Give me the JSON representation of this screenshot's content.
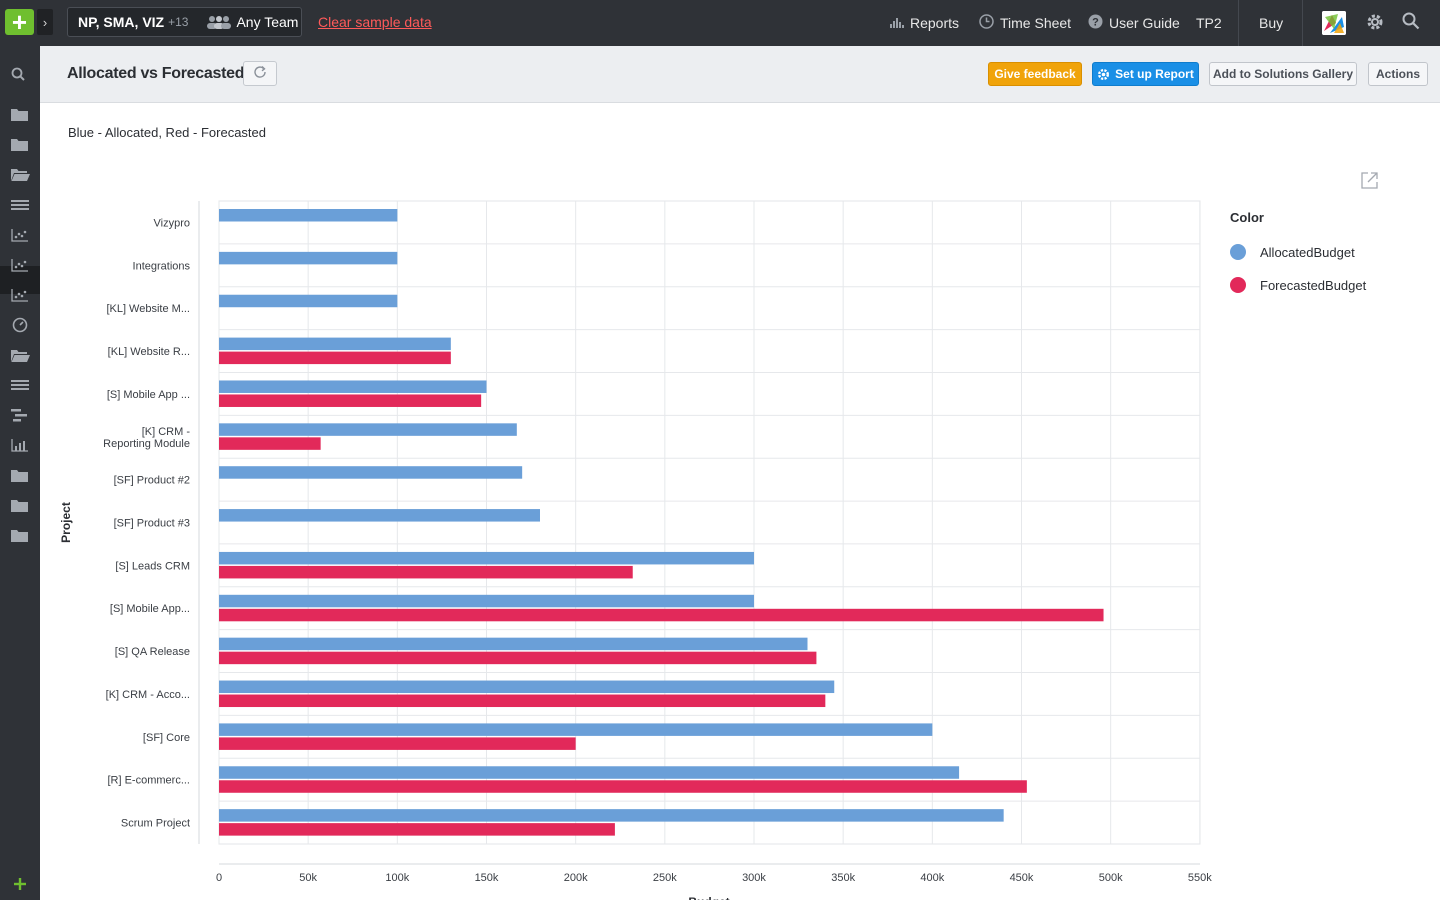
{
  "topbar": {
    "context_projects": "NP, SMA, VIZ",
    "context_count": "+13",
    "context_team": "Any Team",
    "clear_link": "Clear sample data",
    "nav": [
      {
        "label": "Reports",
        "icon": "bar-chart-icon"
      },
      {
        "label": "Time Sheet",
        "icon": "clock-icon"
      },
      {
        "label": "User Guide",
        "icon": "help-icon"
      },
      {
        "label": "TP2",
        "icon": ""
      },
      {
        "label": "Buy",
        "icon": ""
      }
    ]
  },
  "sidebar": {
    "icons": [
      "search-icon",
      "folder-icon",
      "folder-icon",
      "folder-open-icon",
      "list-icon",
      "scatter-chart-icon",
      "scatter-chart-icon",
      "scatter-chart-icon",
      "gauge-icon",
      "folder-open-icon",
      "list-icon",
      "gantt-icon",
      "bar-chart-icon",
      "folder-icon",
      "folder-icon",
      "folder-icon",
      "add-icon"
    ]
  },
  "header": {
    "title": "Allocated vs Forecasted",
    "feedback_label": "Give feedback",
    "setup_label": "Set up Report",
    "gallery_label": "Add to Solutions Gallery",
    "actions_label": "Actions"
  },
  "report": {
    "description": "Blue - Allocated, Red - Forecasted"
  },
  "colors": {
    "allocated": "#6a9fd8",
    "forecasted": "#e2295a",
    "accent_green": "#6fbf2f",
    "accent_blue": "#1a8fe6",
    "accent_orange": "#f0a30a"
  },
  "chart_data": {
    "type": "bar",
    "orientation": "horizontal",
    "ylabel": "Project",
    "xlabel": "Budget",
    "xlim": [
      0,
      550000
    ],
    "x_ticks": [
      "0",
      "50k",
      "100k",
      "150k",
      "200k",
      "250k",
      "300k",
      "350k",
      "400k",
      "450k",
      "500k",
      "550k"
    ],
    "grid": true,
    "legend_title": "Color",
    "legend_position": "right",
    "categories": [
      [
        "Vizypro"
      ],
      [
        "Integrations"
      ],
      [
        "[KL] Website M..."
      ],
      [
        "[KL] Website R..."
      ],
      [
        "[S] Mobile App ..."
      ],
      [
        "[K] CRM -",
        "Reporting Module"
      ],
      [
        "[SF] Product #2"
      ],
      [
        "[SF] Product #3"
      ],
      [
        "[S] Leads CRM"
      ],
      [
        "[S] Mobile App..."
      ],
      [
        "[S] QA Release"
      ],
      [
        "[K] CRM - Acco..."
      ],
      [
        "[SF] Core"
      ],
      [
        "[R] E-commerc..."
      ],
      [
        "Scrum Project"
      ]
    ],
    "series": [
      {
        "name": "AllocatedBudget",
        "values": [
          100000,
          100000,
          100000,
          130000,
          150000,
          167000,
          170000,
          180000,
          300000,
          300000,
          330000,
          345000,
          400000,
          415000,
          440000
        ]
      },
      {
        "name": "ForecastedBudget",
        "values": [
          null,
          null,
          null,
          130000,
          147000,
          57000,
          null,
          null,
          232000,
          496000,
          335000,
          340000,
          200000,
          453000,
          222000
        ]
      }
    ]
  }
}
